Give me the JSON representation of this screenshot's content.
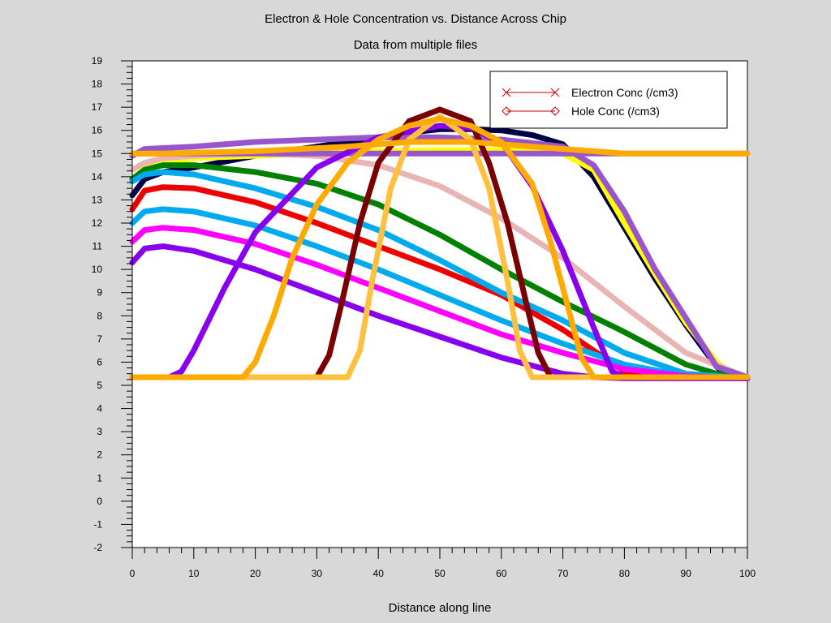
{
  "chart_data": {
    "type": "line",
    "title": "Electron & Hole Concentration vs. Distance Across Chip",
    "subtitle": "Data from multiple files",
    "xlabel": "Distance along line",
    "ylabel": "",
    "xlim": [
      0,
      100
    ],
    "ylim": [
      -2,
      19
    ],
    "x_ticks": [
      0,
      10,
      20,
      30,
      40,
      50,
      60,
      70,
      80,
      90,
      100
    ],
    "y_ticks": [
      -2,
      -1,
      0,
      1,
      2,
      3,
      4,
      5,
      6,
      7,
      8,
      9,
      10,
      11,
      12,
      13,
      14,
      15,
      16,
      17,
      18,
      19
    ],
    "legend": {
      "placement": "top-right",
      "entries": [
        {
          "label": "Electron Conc (/cm3)",
          "marker": "x",
          "color": "#cc0000"
        },
        {
          "label": "Hole Conc (/cm3)",
          "marker": "diamond",
          "color": "#cc0000"
        }
      ]
    },
    "series": [
      {
        "color": "#000044",
        "x": [
          0,
          2,
          5,
          10,
          20,
          30,
          40,
          45,
          50,
          55,
          60,
          65,
          70,
          75,
          80,
          85,
          90,
          95,
          97,
          100
        ],
        "y": [
          13.2,
          13.9,
          14.2,
          14.4,
          14.9,
          15.3,
          15.7,
          15.9,
          16.05,
          16.05,
          16.0,
          15.8,
          15.4,
          14.0,
          11.8,
          9.6,
          7.6,
          5.8,
          5.4,
          5.35
        ]
      },
      {
        "color": "#ffff00",
        "x": [
          0,
          2,
          5,
          10,
          20,
          30,
          40,
          50,
          60,
          65,
          70,
          75,
          80,
          85,
          90,
          95,
          98,
          100
        ],
        "y": [
          13.8,
          14.4,
          14.6,
          14.8,
          14.9,
          15.0,
          15.1,
          15.15,
          15.15,
          15.1,
          15.0,
          14.3,
          12.0,
          9.8,
          7.7,
          6.0,
          5.4,
          5.3
        ]
      },
      {
        "color": "#008000",
        "x": [
          0,
          2,
          5,
          10,
          20,
          30,
          40,
          50,
          60,
          70,
          80,
          90,
          95,
          100
        ],
        "y": [
          13.9,
          14.3,
          14.5,
          14.5,
          14.2,
          13.7,
          12.8,
          11.5,
          10.0,
          8.6,
          7.3,
          5.9,
          5.5,
          5.35
        ]
      },
      {
        "color": "#e8b4b4",
        "x": [
          0,
          2,
          5,
          10,
          20,
          30,
          40,
          50,
          60,
          70,
          80,
          90,
          100
        ],
        "y": [
          14.3,
          14.6,
          14.8,
          14.9,
          15.0,
          14.9,
          14.5,
          13.6,
          12.2,
          10.5,
          8.4,
          6.4,
          5.35
        ]
      },
      {
        "color": "#ee0000",
        "x": [
          0,
          2,
          5,
          10,
          20,
          30,
          40,
          50,
          60,
          70,
          80,
          90,
          100
        ],
        "y": [
          12.6,
          13.4,
          13.55,
          13.5,
          12.9,
          12.0,
          11.0,
          10.0,
          8.9,
          7.4,
          5.6,
          5.4,
          5.3
        ]
      },
      {
        "color": "#00aaee",
        "x": [
          0,
          2,
          5,
          10,
          20,
          30,
          40,
          50,
          60,
          70,
          80,
          90,
          100
        ],
        "y": [
          13.8,
          14.1,
          14.2,
          14.1,
          13.5,
          12.7,
          11.7,
          10.4,
          9.0,
          7.8,
          6.4,
          5.5,
          5.3
        ]
      },
      {
        "color": "#00aaee",
        "x": [
          0,
          2,
          5,
          10,
          20,
          30,
          40,
          50,
          60,
          70,
          80,
          90,
          100
        ],
        "y": [
          12.0,
          12.5,
          12.6,
          12.5,
          11.9,
          11.0,
          10.0,
          8.9,
          7.8,
          6.8,
          5.9,
          5.4,
          5.3
        ]
      },
      {
        "color": "#ff00ff",
        "x": [
          0,
          2,
          5,
          10,
          20,
          30,
          40,
          50,
          60,
          70,
          80,
          90,
          100
        ],
        "y": [
          11.2,
          11.7,
          11.8,
          11.7,
          11.1,
          10.2,
          9.2,
          8.2,
          7.2,
          6.4,
          5.7,
          5.4,
          5.3
        ]
      },
      {
        "color": "#8800ee",
        "x": [
          0,
          2,
          5,
          10,
          20,
          30,
          40,
          50,
          60,
          70,
          75,
          80,
          90,
          100
        ],
        "y": [
          10.3,
          10.9,
          11.0,
          10.8,
          10.0,
          9.0,
          8.0,
          7.1,
          6.2,
          5.5,
          5.35,
          5.3,
          5.3,
          5.3
        ]
      },
      {
        "color": "#9955cc",
        "x": [
          0,
          2,
          10,
          20,
          30,
          40,
          50,
          60,
          70,
          75,
          80,
          85,
          90,
          95,
          100
        ],
        "y": [
          14.9,
          15.2,
          15.3,
          15.5,
          15.6,
          15.7,
          15.7,
          15.6,
          15.3,
          14.5,
          12.5,
          10.0,
          7.9,
          5.8,
          5.35
        ]
      },
      {
        "color": "#9955cc",
        "x": [
          0,
          5,
          20,
          40,
          60,
          80,
          100
        ],
        "y": [
          15.0,
          15.0,
          15.0,
          15.0,
          15.0,
          15.0,
          15.0
        ]
      },
      {
        "color": "#8800ee",
        "x": [
          0,
          6,
          8,
          10,
          15,
          20,
          30,
          40,
          50,
          55,
          60,
          65,
          70,
          75,
          78,
          80,
          100
        ],
        "y": [
          5.35,
          5.35,
          5.6,
          6.5,
          9.2,
          11.6,
          14.4,
          15.7,
          16.2,
          16.1,
          15.5,
          13.6,
          10.8,
          7.5,
          5.6,
          5.35,
          5.35
        ]
      },
      {
        "color": "#7a0000",
        "x": [
          0,
          30,
          32,
          34,
          37,
          40,
          45,
          50,
          55,
          58,
          61,
          64,
          66,
          68,
          70,
          100
        ],
        "y": [
          5.35,
          5.35,
          6.3,
          8.5,
          12.0,
          14.6,
          16.4,
          16.9,
          16.4,
          14.6,
          12.0,
          8.6,
          6.4,
          5.35,
          5.35,
          5.35
        ]
      },
      {
        "color": "#ffc040",
        "x": [
          0,
          35,
          37,
          39,
          42,
          45,
          50,
          55,
          58,
          61,
          63,
          65,
          100
        ],
        "y": [
          5.35,
          5.35,
          6.5,
          9.5,
          13.5,
          15.6,
          16.6,
          15.6,
          13.5,
          9.5,
          6.5,
          5.35,
          5.35
        ]
      },
      {
        "color": "#ffaa00",
        "x": [
          0,
          18,
          20,
          23,
          26,
          30,
          35,
          40,
          45,
          50,
          55,
          60,
          65,
          68,
          71,
          73,
          75,
          100
        ],
        "y": [
          5.35,
          5.35,
          6.0,
          8.0,
          10.5,
          12.8,
          14.6,
          15.6,
          16.2,
          16.5,
          16.2,
          15.5,
          13.7,
          11.2,
          8.2,
          6.2,
          5.35,
          5.35
        ]
      },
      {
        "color": "#ffaa00",
        "x": [
          0,
          5,
          20,
          35,
          45,
          55,
          65,
          75,
          80,
          100
        ],
        "y": [
          15.0,
          15.0,
          15.1,
          15.3,
          15.5,
          15.5,
          15.3,
          15.1,
          15.0,
          15.0
        ]
      }
    ]
  }
}
